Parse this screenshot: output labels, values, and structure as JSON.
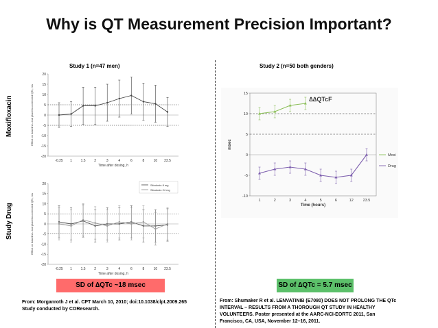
{
  "slide": {
    "title": "Why is QT Measurement Precision Important?",
    "study1_label": "Study 1 (n=47 men)",
    "study2_label": "Study 2 (n=50 both genders)",
    "row_label_top": "Moxifloxacin",
    "row_label_bottom": "Study Drug",
    "badge_left": "SD of ∆QTc ~18 msec",
    "badge_right": "SD of ∆QTc = 5.7 msec",
    "badge_left_color": "#ff6b6b",
    "badge_right_color": "#5cc06a",
    "citation_left": [
      "From: Morganroth J et al. CPT March 10, 2010; doi:10.1038/clpt.2009.265",
      "Study conducted by COResearch."
    ],
    "citation_right": [
      "From: Shumaker R et al. LENVATINIB (E7080) DOES NOT PROLONG THE QTc",
      "INTERVAL – RESULTS FROM A THOROUGH QT STUDY IN HEALTHY",
      "VOLUNTEERS. Poster presented at the AARC-NCI-EORTC 2011, San",
      "Francisco, CA, USA, November 12–16, 2011."
    ]
  },
  "chart_data": [
    {
      "type": "line",
      "xlabel": "Time after dosing, h",
      "ylabel": "Effect on baseline- and placebo-corrected QTc, ms",
      "categories": [
        "-0.25",
        "1",
        "1.5",
        "2",
        "3",
        "4",
        "6",
        "8",
        "10",
        "23.5"
      ],
      "ylim": [
        -20,
        20
      ],
      "yticks": [
        -20,
        -15,
        -10,
        -5,
        0,
        5,
        10,
        15,
        20
      ],
      "reference_lines": [
        5,
        -5
      ],
      "series": [
        {
          "values": [
            0,
            0.5,
            4.5,
            4.5,
            6,
            8,
            9.5,
            6.5,
            5.5,
            1.5
          ],
          "err": [
            6,
            6,
            9,
            9,
            9,
            9,
            9,
            9,
            9,
            7
          ],
          "color": "#444444"
        }
      ]
    },
    {
      "type": "line",
      "xlabel": "Time after dosing, h",
      "ylabel": "Effect on baseline- and placebo-corrected QTc, ms",
      "categories": [
        "-0.25",
        "1",
        "1.5",
        "2",
        "3",
        "4",
        "6",
        "8",
        "10",
        "23.5"
      ],
      "ylim": [
        -20,
        20
      ],
      "yticks": [
        -20,
        -15,
        -10,
        -5,
        0,
        5,
        10,
        15,
        20
      ],
      "reference_lines": [
        5,
        -5
      ],
      "legend_position": "top-right",
      "series": [
        {
          "name": "Sitodosin 8 mg",
          "values": [
            1,
            0,
            1.5,
            -1,
            0,
            0,
            1,
            -1,
            -1,
            -0.5
          ],
          "err": [
            8,
            8,
            8,
            8,
            8,
            8,
            8,
            8,
            8,
            8
          ],
          "color": "#555555"
        },
        {
          "name": "Sitodosin 24 mg",
          "values": [
            0,
            -1,
            2,
            0.5,
            -1,
            1,
            0,
            1,
            -2.5,
            0
          ],
          "err": [
            8,
            8,
            8,
            8,
            8,
            8,
            8,
            8,
            8,
            8
          ],
          "color": "#999999"
        }
      ]
    },
    {
      "type": "line",
      "title": "∆∆QTcF",
      "xlabel": "Time (hours)",
      "ylabel": "msec",
      "categories": [
        "1",
        "2",
        "3",
        "4",
        "5",
        "6",
        "12",
        "23.5"
      ],
      "ylim": [
        -10,
        15
      ],
      "yticks": [
        -10,
        -5,
        0,
        5,
        10,
        15
      ],
      "reference_lines": [
        10,
        5
      ],
      "legend_position": "right",
      "series": [
        {
          "name": "Moxi",
          "values": [
            10,
            10.5,
            12,
            12.5,
            null,
            null,
            null,
            null
          ],
          "err": [
            1.5,
            1.5,
            1.5,
            1.5,
            null,
            null,
            null,
            null
          ],
          "color": "#8cbf5a"
        },
        {
          "name": "Drug",
          "values": [
            -4.5,
            -3.5,
            -3,
            -3.5,
            -5,
            -5.5,
            -5,
            0
          ],
          "err": [
            1.5,
            1.5,
            1.5,
            1.5,
            1.5,
            1.5,
            1.5,
            1.5
          ],
          "color": "#7d5fae"
        }
      ]
    }
  ]
}
